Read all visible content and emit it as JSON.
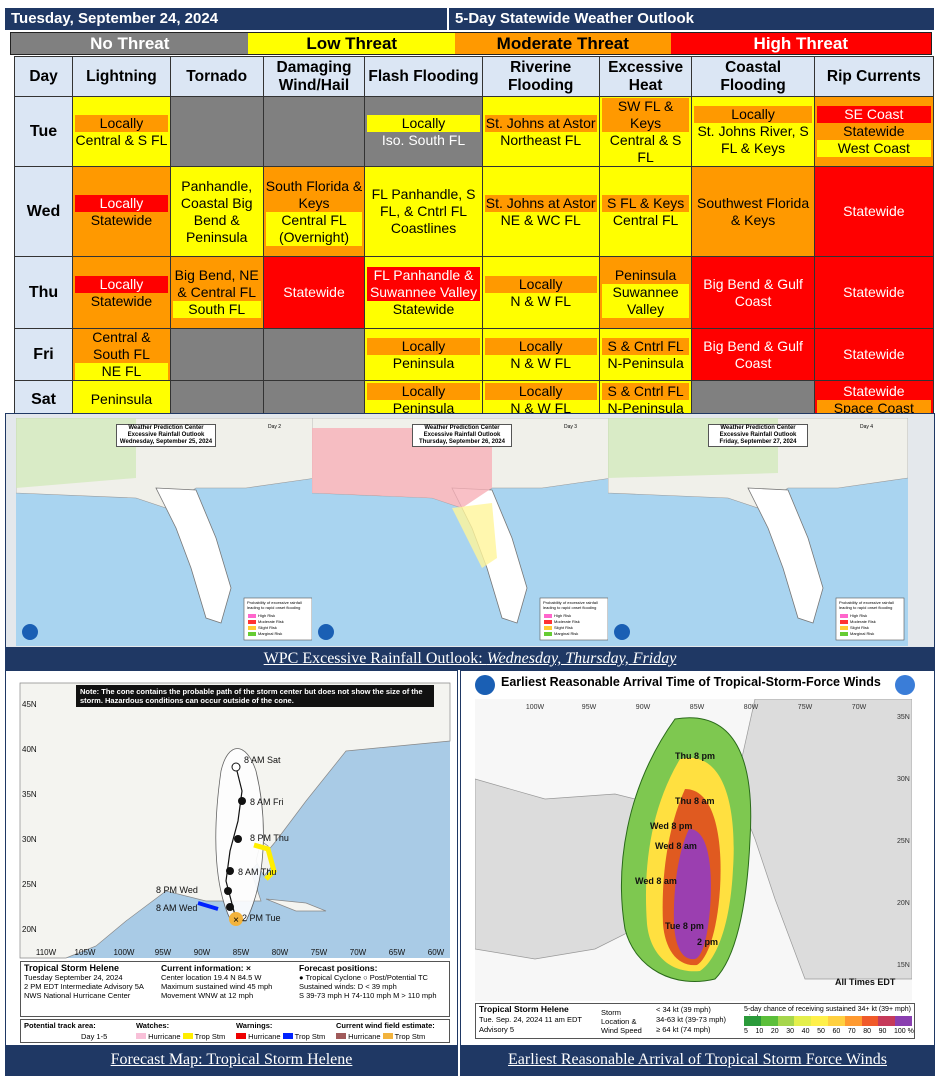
{
  "header": {
    "date": "Tuesday, September 24, 2024",
    "title": "5-Day Statewide Weather Outlook"
  },
  "legend": {
    "no": "No Threat",
    "low": "Low Threat",
    "mod": "Moderate Threat",
    "high": "High Threat"
  },
  "columns": [
    "Day",
    "Lightning",
    "Tornado",
    "Damaging Wind/Hail",
    "Flash Flooding",
    "Riverine Flooding",
    "Excessive Heat",
    "Coastal Flooding",
    "Rip Currents"
  ],
  "rows": [
    {
      "day": "Tue",
      "cells": [
        {
          "c": "y",
          "lines": [
            {
              "t": "Locally",
              "h": "ho"
            },
            {
              "t": "Central & S FL"
            }
          ]
        },
        {
          "c": "g",
          "lines": []
        },
        {
          "c": "g",
          "lines": []
        },
        {
          "c": "g",
          "lines": [
            {
              "t": "Locally",
              "h": "hy"
            },
            {
              "t": "Iso. South FL",
              "cls": "tw"
            }
          ]
        },
        {
          "c": "y",
          "lines": [
            {
              "t": "St. Johns at Astor",
              "h": "ho"
            },
            {
              "t": "Northeast FL"
            }
          ]
        },
        {
          "c": "y",
          "lines": [
            {
              "t": "SW FL & Keys",
              "h": "ho"
            },
            {
              "t": "Central & S FL"
            }
          ]
        },
        {
          "c": "y",
          "lines": [
            {
              "t": "Locally",
              "h": "ho"
            },
            {
              "t": "St. Johns River, S FL & Keys"
            }
          ]
        },
        {
          "c": "o",
          "lines": [
            {
              "t": "SE Coast",
              "h": "hr"
            },
            {
              "t": "Statewide"
            },
            {
              "t": "West Coast",
              "h": "hy"
            }
          ]
        }
      ]
    },
    {
      "day": "Wed",
      "cells": [
        {
          "c": "o",
          "lines": [
            {
              "t": "Locally",
              "h": "hr"
            },
            {
              "t": "Statewide"
            }
          ]
        },
        {
          "c": "y",
          "lines": [
            {
              "t": "Panhandle, Coastal Big Bend & Peninsula"
            }
          ]
        },
        {
          "c": "o",
          "lines": [
            {
              "t": "South Florida & Keys"
            },
            {
              "t": "Central FL (Overnight)",
              "h": "hy"
            }
          ]
        },
        {
          "c": "y",
          "lines": [
            {
              "t": "FL Panhandle, S FL, & Cntrl FL Coastlines"
            }
          ]
        },
        {
          "c": "y",
          "lines": [
            {
              "t": "St. Johns at Astor",
              "h": "ho"
            },
            {
              "t": "NE & WC FL"
            }
          ]
        },
        {
          "c": "y",
          "lines": [
            {
              "t": "S FL & Keys",
              "h": "ho"
            },
            {
              "t": "Central FL"
            }
          ]
        },
        {
          "c": "o",
          "lines": [
            {
              "t": "Southwest Florida & Keys"
            }
          ]
        },
        {
          "c": "r",
          "lines": [
            {
              "t": "Statewide",
              "cls": "tw"
            }
          ]
        }
      ]
    },
    {
      "day": "Thu",
      "cells": [
        {
          "c": "o",
          "lines": [
            {
              "t": "Locally",
              "h": "hr"
            },
            {
              "t": "Statewide"
            }
          ]
        },
        {
          "c": "o",
          "lines": [
            {
              "t": "Big Bend, NE & Central FL"
            },
            {
              "t": "South FL",
              "h": "hy"
            }
          ]
        },
        {
          "c": "r",
          "lines": [
            {
              "t": "Statewide",
              "cls": "tw"
            }
          ]
        },
        {
          "c": "y",
          "lines": [
            {
              "t": "FL Panhandle & Suwannee Valley",
              "h": "hr"
            },
            {
              "t": "Statewide"
            }
          ]
        },
        {
          "c": "y",
          "lines": [
            {
              "t": "Locally",
              "h": "ho"
            },
            {
              "t": "N & W FL"
            }
          ]
        },
        {
          "c": "o",
          "lines": [
            {
              "t": "Peninsula"
            },
            {
              "t": "Suwannee Valley",
              "h": "hy"
            }
          ]
        },
        {
          "c": "r",
          "lines": [
            {
              "t": "Big Bend & Gulf Coast",
              "cls": "tw"
            }
          ]
        },
        {
          "c": "r",
          "lines": [
            {
              "t": "Statewide",
              "cls": "tw"
            }
          ]
        }
      ]
    },
    {
      "day": "Fri",
      "cells": [
        {
          "c": "o",
          "lines": [
            {
              "t": "Central & South FL"
            },
            {
              "t": "NE FL",
              "h": "hy"
            }
          ]
        },
        {
          "c": "g",
          "lines": []
        },
        {
          "c": "g",
          "lines": []
        },
        {
          "c": "y",
          "lines": [
            {
              "t": "Locally",
              "h": "ho"
            },
            {
              "t": "Peninsula"
            }
          ]
        },
        {
          "c": "y",
          "lines": [
            {
              "t": "Locally",
              "h": "ho"
            },
            {
              "t": "N & W FL"
            }
          ]
        },
        {
          "c": "y",
          "lines": [
            {
              "t": "S & Cntrl FL",
              "h": "ho"
            },
            {
              "t": "N-Peninsula"
            }
          ]
        },
        {
          "c": "r",
          "lines": [
            {
              "t": "Big Bend & Gulf Coast",
              "cls": "tw"
            }
          ]
        },
        {
          "c": "r",
          "lines": [
            {
              "t": "Statewide",
              "cls": "tw"
            }
          ]
        }
      ]
    },
    {
      "day": "Sat",
      "cells": [
        {
          "c": "y",
          "lines": [
            {
              "t": "Peninsula"
            }
          ]
        },
        {
          "c": "g",
          "lines": []
        },
        {
          "c": "g",
          "lines": []
        },
        {
          "c": "y",
          "lines": [
            {
              "t": "Locally",
              "h": "ho"
            },
            {
              "t": "Peninsula"
            }
          ]
        },
        {
          "c": "y",
          "lines": [
            {
              "t": "Locally",
              "h": "ho"
            },
            {
              "t": "N & W FL"
            }
          ]
        },
        {
          "c": "y",
          "lines": [
            {
              "t": "S & Cntrl FL",
              "h": "ho"
            },
            {
              "t": "N-Peninsula"
            }
          ]
        },
        {
          "c": "g",
          "lines": []
        },
        {
          "c": "r",
          "lines": [
            {
              "t": "Statewide",
              "cls": "tw"
            },
            {
              "t": "Space Coast",
              "h": "ho"
            }
          ]
        }
      ]
    }
  ],
  "wpc": {
    "maps": [
      {
        "org": "Weather Prediction Center",
        "title": "Excessive Rainfall Outlook",
        "date": "Wednesday, September 25, 2024",
        "day": "Day 2"
      },
      {
        "org": "Weather Prediction Center",
        "title": "Excessive Rainfall Outlook",
        "date": "Thursday, September 26, 2024",
        "day": "Day 3"
      },
      {
        "org": "Weather Prediction Center",
        "title": "Excessive Rainfall Outlook",
        "date": "Friday, September 27, 2024",
        "day": "Day 4"
      }
    ],
    "legend_title": "Probability of excessive rainfall leading to rapid onset flooding",
    "legend_items": [
      "High Risk",
      "Moderate Risk",
      "Slight Risk",
      "Marginal Risk"
    ],
    "caption_main": "WPC Excessive Rainfall Outlook: ",
    "caption_days": "Wednesday, Thursday, Friday"
  },
  "cone": {
    "note": "Note: The cone contains the probable path of the storm center but does not show the size of the storm. Hazardous conditions can occur outside of the cone.",
    "lat_labels": [
      "45N",
      "40N",
      "35N",
      "30N",
      "25N",
      "20N"
    ],
    "lon_labels": [
      "110W",
      "105W",
      "100W",
      "95W",
      "90W",
      "85W",
      "80W",
      "75W",
      "70W",
      "65W",
      "60W"
    ],
    "positions": [
      "8 AM Sat",
      "8 AM Fri",
      "8 PM Thu",
      "8 AM Thu",
      "8 PM Wed",
      "8 AM Wed",
      "2 PM Tue"
    ],
    "storm": "Tropical Storm Helene",
    "info": [
      "Tuesday September 24, 2024",
      "2 PM EDT Intermediate Advisory 5A",
      "NWS National Hurricane Center"
    ],
    "current_title": "Current information: ×",
    "current": [
      "Center location 19.4 N 84.5 W",
      "Maximum sustained wind 45 mph",
      "Movement WNW at 12 mph"
    ],
    "forecast_title": "Forecast positions:",
    "forecast": [
      "● Tropical Cyclone   ○ Post/Potential TC",
      "Sustained winds:   D < 39 mph",
      "S 39-73 mph   H 74-110 mph   M > 110 mph"
    ],
    "track_label": "Potential track area:",
    "track_item": "Day 1-5",
    "watches": "Watches:",
    "warnings": "Warnings:",
    "wind_est": "Current wind field estimate:",
    "w_items": [
      "Hurricane",
      "Trop Stm"
    ],
    "caption": "Forecast Map: Tropical Storm Helene"
  },
  "arrival": {
    "title": "Earliest Reasonable Arrival Time of Tropical-Storm-Force Winds",
    "lon_labels": [
      "100W",
      "95W",
      "90W",
      "85W",
      "80W",
      "75W",
      "70W"
    ],
    "lat_labels": [
      "35N",
      "30N",
      "25N",
      "20N",
      "15N"
    ],
    "times": [
      "Thu 8 pm",
      "Thu 8 am",
      "Wed 8 pm",
      "Wed 8 am",
      "Wed 8 am",
      "Tue 8 pm",
      "2 pm"
    ],
    "all_times": "All Times EDT",
    "storm": "Tropical Storm Helene",
    "adv": [
      "Tue. Sep. 24, 2024   11 am EDT",
      "Advisory 5"
    ],
    "loc_label": "Storm Location & Wind Speed",
    "speeds": [
      "< 34 kt (39 mph)",
      "34-63 kt (39-73 mph)",
      "≥ 64 kt (74 mph)"
    ],
    "scale_title": "5-day chance of receiving sustained 34+ kt (39+ mph) winds",
    "scale": [
      "5",
      "10",
      "20",
      "30",
      "40",
      "50",
      "60",
      "70",
      "80",
      "90",
      "100 %"
    ],
    "caption": "Earliest Reasonable Arrival of Tropical Storm Force Winds"
  }
}
